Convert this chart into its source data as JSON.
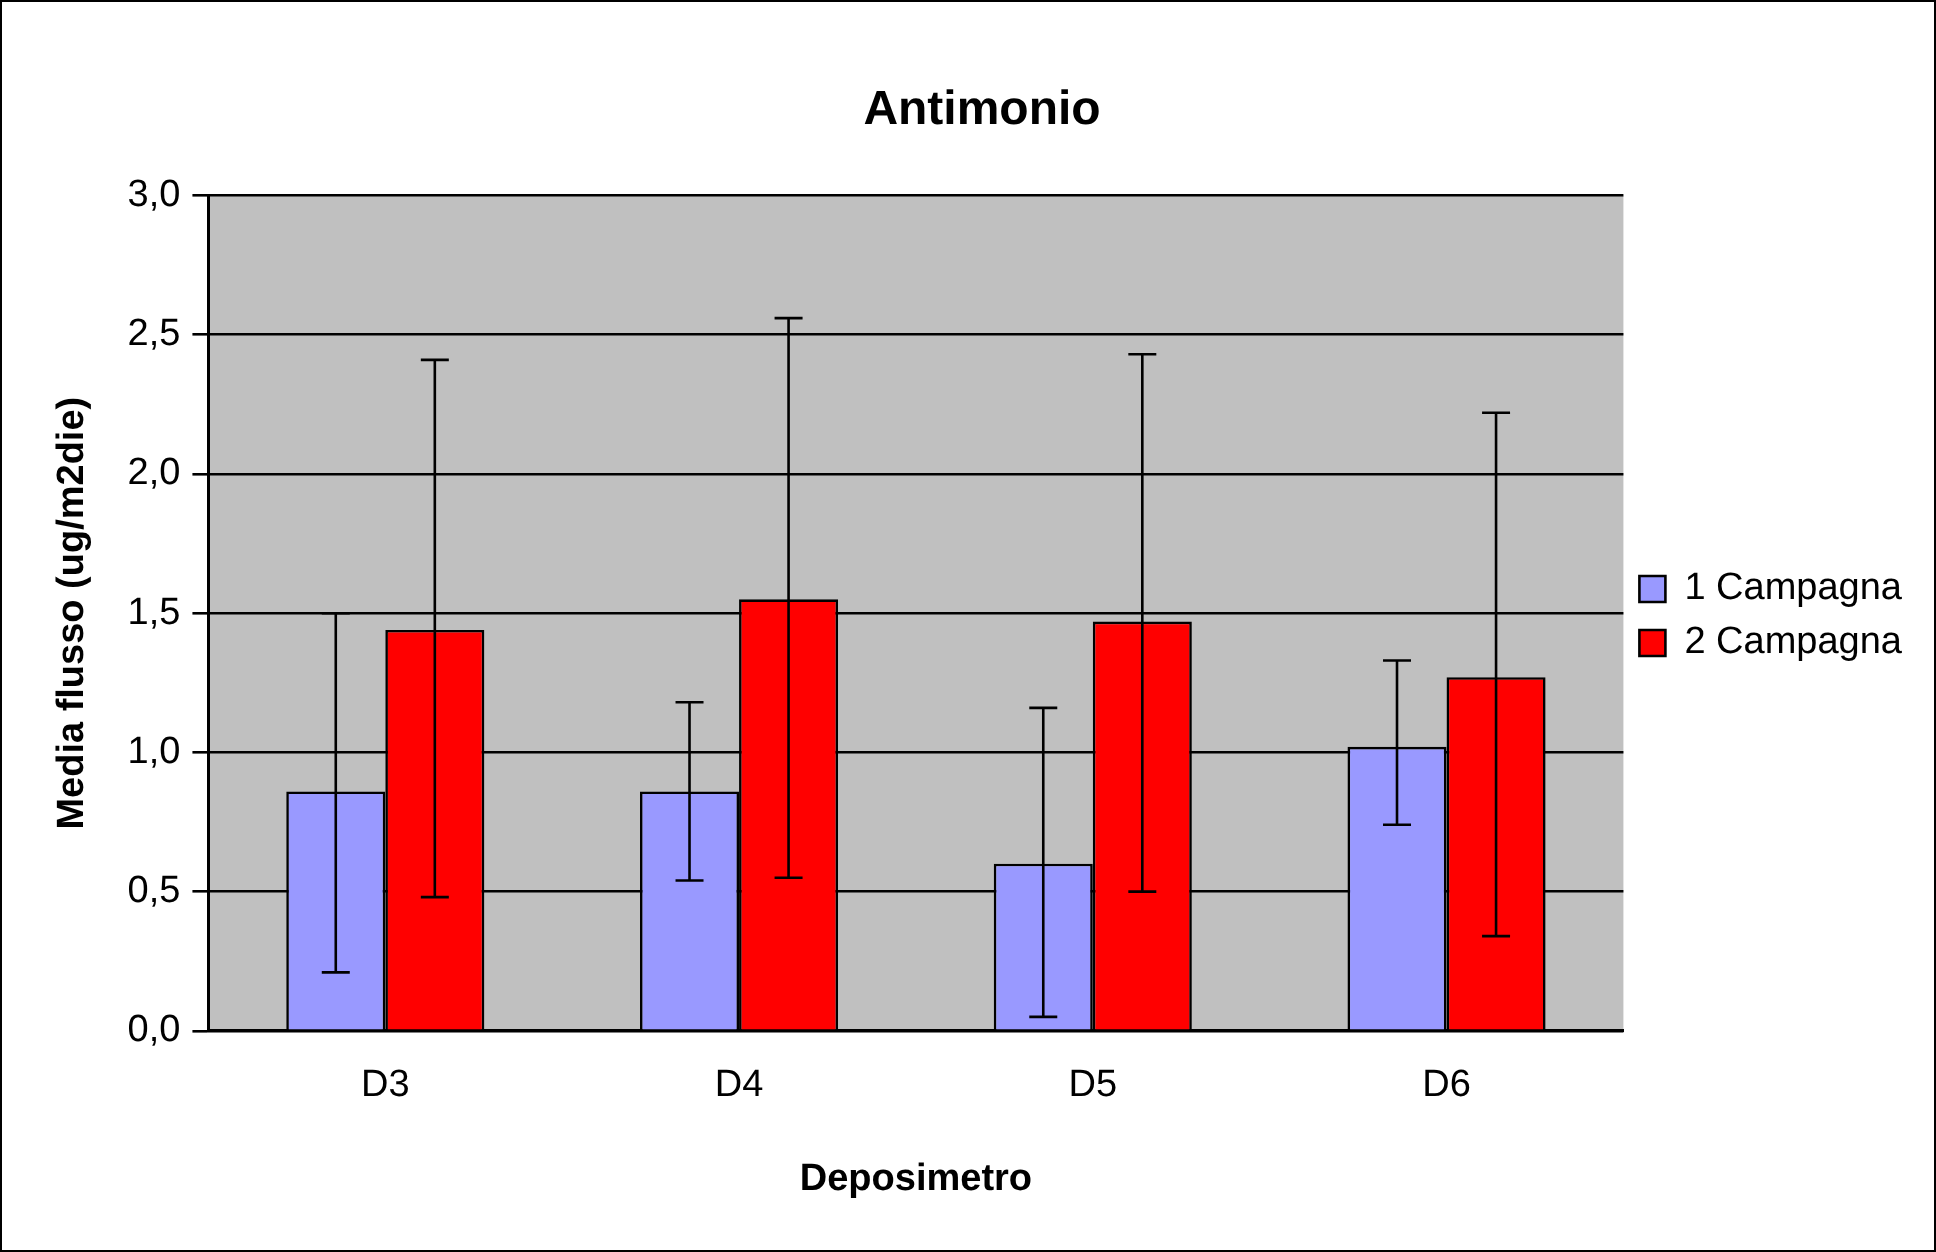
{
  "chart_data": {
    "type": "bar",
    "title": "Antimonio",
    "xlabel": "Deposimetro",
    "ylabel": "Media flusso (ug/m2die)",
    "categories": [
      "D3",
      "D4",
      "D5",
      "D6"
    ],
    "series": [
      {
        "name": "1 Campagna",
        "color": "#9999ff",
        "values": [
          0.86,
          0.86,
          0.6,
          1.02
        ],
        "errors": [
          [
            0.21,
            1.5
          ],
          [
            0.54,
            1.18
          ],
          [
            0.05,
            1.16
          ],
          [
            0.74,
            1.33
          ]
        ]
      },
      {
        "name": "2 Campagna",
        "color": "#ff0000",
        "values": [
          1.44,
          1.55,
          1.47,
          1.27
        ],
        "errors": [
          [
            0.48,
            2.41
          ],
          [
            0.55,
            2.56
          ],
          [
            0.5,
            2.43
          ],
          [
            0.34,
            2.22
          ]
        ]
      }
    ],
    "ylim": [
      0,
      3
    ],
    "yticks": [
      {
        "value": 0,
        "label": "0,0"
      },
      {
        "value": 0.5,
        "label": "0,5"
      },
      {
        "value": 1,
        "label": "1,0"
      },
      {
        "value": 1.5,
        "label": "1,5"
      },
      {
        "value": 2,
        "label": "2,0"
      },
      {
        "value": 2.5,
        "label": "2,5"
      },
      {
        "value": 3,
        "label": "3,0"
      }
    ],
    "grid": "y",
    "legend": "right"
  }
}
